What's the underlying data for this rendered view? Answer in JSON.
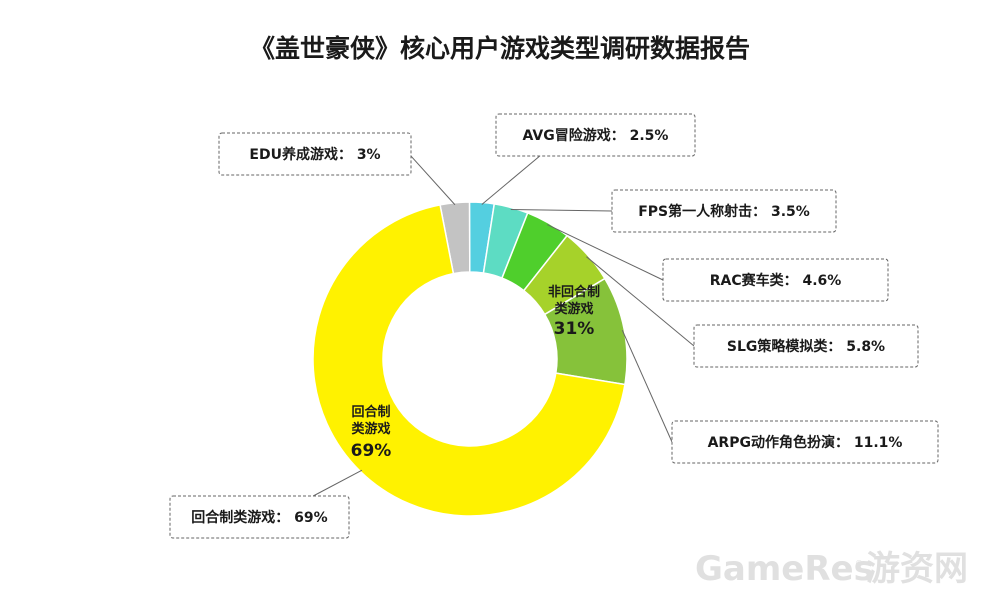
{
  "chart_data": {
    "type": "pie",
    "donut": true,
    "title": "《盖世豪侠》核心用户游戏类型调研数据报告",
    "slices": [
      {
        "name": "EDU养成游戏",
        "value": 3,
        "label": "EDU养成游戏： 3%",
        "color": "#c3c3c3"
      },
      {
        "name": "AVG冒险游戏",
        "value": 2.5,
        "label": "AVG冒险游戏： 2.5%",
        "color": "#54cfe0"
      },
      {
        "name": "FPS第一人称射击",
        "value": 3.5,
        "label": "FPS第一人称射击： 3.5%",
        "color": "#5ddcc3"
      },
      {
        "name": "RAC赛车类",
        "value": 4.6,
        "label": "RAC赛车类： 4.6%",
        "color": "#4fcf2c"
      },
      {
        "name": "SLG策略模拟类",
        "value": 5.8,
        "label": "SLG策略模拟类： 5.8%",
        "color": "#a6d22a"
      },
      {
        "name": "ARPG动作角色扮演",
        "value": 11.1,
        "label": "ARPG动作角色扮演： 11.1%",
        "color": "#86c23a"
      },
      {
        "name": "回合制类游戏",
        "value": 69,
        "label": "回合制类游戏： 69%",
        "color": "#fff200"
      }
    ],
    "groups": [
      {
        "line1": "非回合制",
        "line2": "类游戏",
        "pct": "31%"
      },
      {
        "line1": "回合制",
        "line2": "类游戏",
        "pct": "69%"
      }
    ]
  },
  "watermark": {
    "en": "GameRes",
    "reg": "®",
    "cn": "游资网"
  }
}
